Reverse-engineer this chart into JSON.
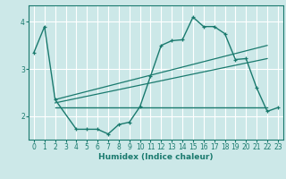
{
  "xlabel": "Humidex (Indice chaleur)",
  "bg_color": "#cce8e8",
  "grid_color": "#ffffff",
  "line_color": "#1a7a6e",
  "xlim": [
    -0.5,
    23.5
  ],
  "ylim": [
    1.5,
    4.35
  ],
  "yticks": [
    2,
    3,
    4
  ],
  "xticks": [
    0,
    1,
    2,
    3,
    4,
    5,
    6,
    7,
    8,
    9,
    10,
    11,
    12,
    13,
    14,
    15,
    16,
    17,
    18,
    19,
    20,
    21,
    22,
    23
  ],
  "curve_x": [
    0,
    1,
    2,
    4,
    5,
    6,
    7,
    8,
    9,
    10,
    11,
    12,
    13,
    14,
    15,
    16,
    17,
    18,
    19,
    20,
    21,
    22,
    23
  ],
  "curve_y": [
    3.35,
    3.9,
    2.35,
    1.72,
    1.72,
    1.72,
    1.62,
    1.82,
    1.87,
    2.2,
    2.85,
    3.5,
    3.6,
    3.62,
    4.1,
    3.9,
    3.9,
    3.75,
    3.2,
    3.22,
    2.6,
    2.1,
    2.18
  ],
  "hline_x": [
    2,
    22
  ],
  "hline_y": [
    2.18,
    2.18
  ],
  "trend1_x": [
    2,
    22
  ],
  "trend1_y": [
    2.35,
    3.5
  ],
  "trend2_x": [
    2,
    22
  ],
  "trend2_y": [
    2.28,
    3.22
  ]
}
